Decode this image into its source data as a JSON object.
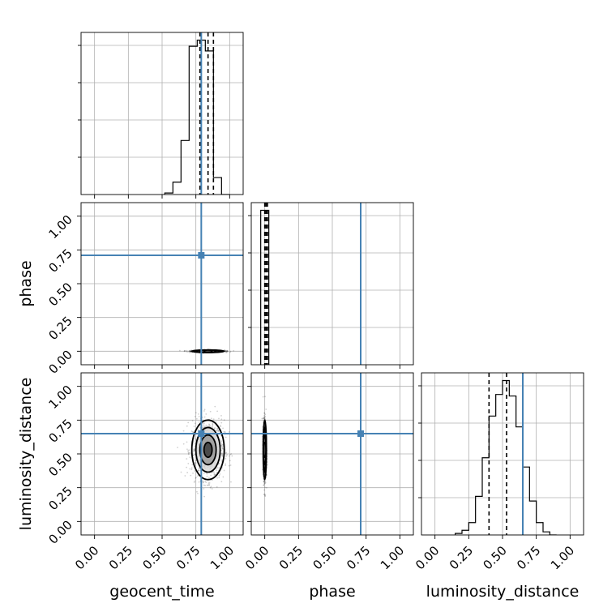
{
  "chart_data": {
    "type": "corner",
    "parameters": [
      {
        "key": "geocent_time",
        "label": "geocent_time",
        "range": [
          -0.1,
          1.1
        ],
        "truth": 0.79
      },
      {
        "key": "phase",
        "label": "phase",
        "range": [
          -0.1,
          1.1
        ],
        "truth": 0.71
      },
      {
        "key": "luminosity_distance",
        "label": "luminosity_distance",
        "range": [
          -0.1,
          1.1
        ],
        "truth": 0.65
      }
    ],
    "ticks": [
      0.0,
      0.25,
      0.5,
      0.75,
      1.0
    ],
    "tick_labels": [
      "0.00",
      "0.25",
      "0.50",
      "0.75",
      "1.00"
    ],
    "truth_color": "#4682b4",
    "grid": true,
    "histograms": {
      "geocent_time": {
        "bin_edges": [
          0.52,
          0.58,
          0.64,
          0.7,
          0.76,
          0.82,
          0.88,
          0.94,
          1.0
        ],
        "counts": [
          0.01,
          0.08,
          0.35,
          0.96,
          1.0,
          0.93,
          0.11,
          0.0
        ],
        "quantiles": [
          0.78,
          0.84,
          0.88
        ]
      },
      "phase": {
        "bin_edges": [
          -0.03,
          0.0,
          0.03
        ],
        "counts": [
          1.0,
          1.0
        ],
        "quantiles": [
          0.0,
          0.01,
          0.02
        ]
      },
      "luminosity_distance": {
        "bin_edges": [
          0.15,
          0.2,
          0.25,
          0.3,
          0.35,
          0.4,
          0.45,
          0.5,
          0.55,
          0.6,
          0.65,
          0.7,
          0.75,
          0.8,
          0.85,
          0.9
        ],
        "counts": [
          0.01,
          0.03,
          0.08,
          0.25,
          0.5,
          0.77,
          0.91,
          1.0,
          0.9,
          0.7,
          0.44,
          0.22,
          0.08,
          0.02,
          0.0
        ],
        "quantiles": [
          0.4,
          0.53,
          0.65
        ]
      }
    },
    "scatter_centers": {
      "geocent_time|phase": {
        "x": 0.84,
        "y": 0.0,
        "sx": 0.06,
        "sy": 0.004
      },
      "geocent_time|luminosity_distance": {
        "x": 0.84,
        "y": 0.53,
        "sx": 0.06,
        "sy": 0.11
      },
      "phase|luminosity_distance": {
        "x": 0.0,
        "y": 0.53,
        "sx": 0.006,
        "sy": 0.11
      }
    }
  }
}
